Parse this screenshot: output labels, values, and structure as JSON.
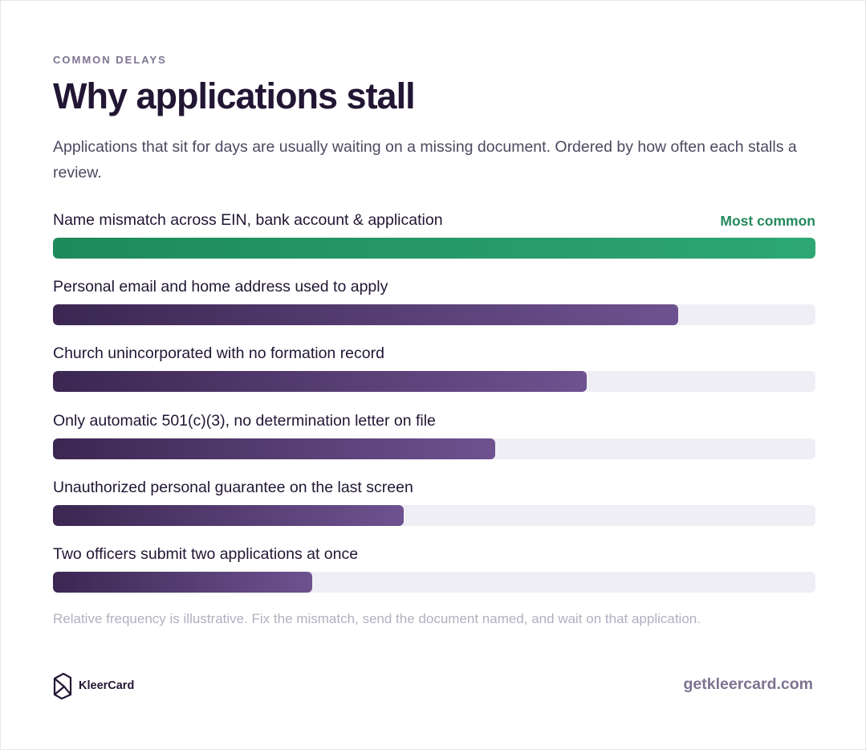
{
  "eyebrow": "COMMON DELAYS",
  "title": "Why applications stall",
  "subtitle": "Applications that sit for days are usually waiting on a missing document. Ordered by how often each stalls a review.",
  "chart_data": {
    "type": "bar",
    "orientation": "horizontal",
    "categories": [
      "Name mismatch across EIN, bank account & application",
      "Personal email and home address used to apply",
      "Church unincorporated with no formation record",
      "Only automatic 501(c)(3), no determination letter on file",
      "Unauthorized personal guarantee on the last screen",
      "Two officers submit two applications at once"
    ],
    "values": [
      100,
      82,
      70,
      58,
      46,
      34
    ],
    "xlim": [
      0,
      100
    ],
    "highlight_index": 0,
    "highlight_label": "Most common",
    "colors": {
      "highlight": "#1f8a5a",
      "bar": "#4a3566",
      "track": "#f0eef5"
    },
    "footnote": "Relative frequency is illustrative. Fix the mismatch, send the document named, and wait on that application."
  },
  "footer": {
    "brand": "KleerCard",
    "logo_icon": "kleercard-logo-icon",
    "site": "getkleercard.com"
  }
}
